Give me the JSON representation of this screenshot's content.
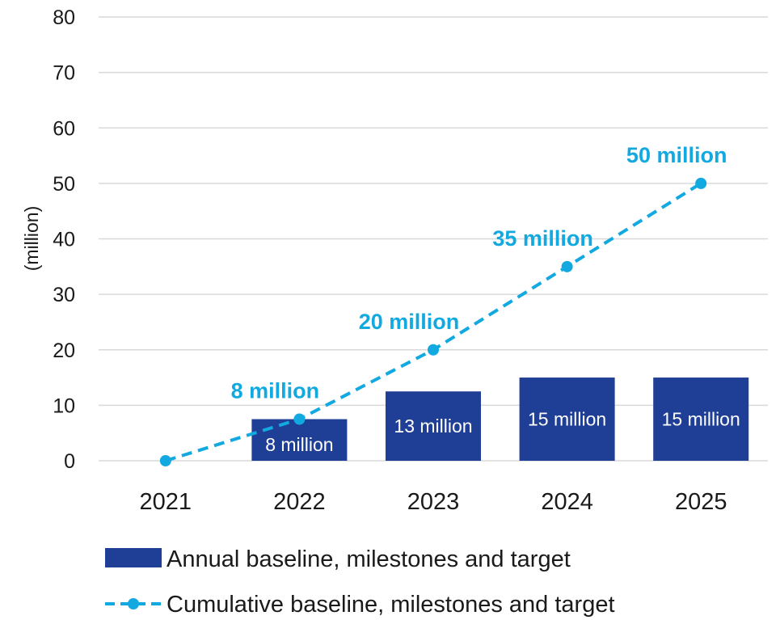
{
  "chart_data": {
    "type": "bar",
    "ylabel": "(million)",
    "xlabel": "",
    "ylim": [
      0,
      80
    ],
    "yticks": [
      0,
      10,
      20,
      30,
      40,
      50,
      60,
      70,
      80
    ],
    "categories": [
      "2021",
      "2022",
      "2023",
      "2024",
      "2025"
    ],
    "grid": true,
    "legend_position": "bottom",
    "series": [
      {
        "name": "Annual baseline, milestones and target",
        "type": "bar",
        "color": "#1f3e95",
        "values": [
          null,
          7.5,
          12.5,
          15,
          15
        ],
        "labels": [
          "",
          "8 million",
          "13 million",
          "15 million",
          "15 million"
        ]
      },
      {
        "name": "Cumulative baseline, milestones and target",
        "type": "line",
        "style": "dashed",
        "marker": "circle",
        "color": "#12a9e1",
        "values": [
          0,
          7.5,
          20,
          35,
          50
        ],
        "labels": [
          "",
          "8 million",
          "20 million",
          "35 million",
          "50 million"
        ]
      }
    ]
  }
}
